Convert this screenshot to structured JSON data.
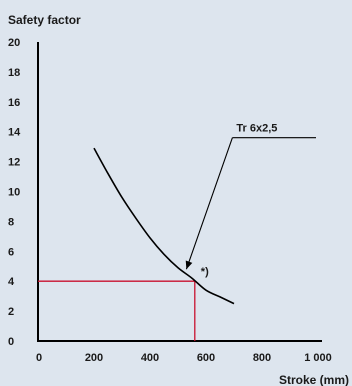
{
  "chart_data": {
    "type": "line",
    "ylabel": "Safety factor",
    "xlabel": "Stroke (mm)",
    "xlim": [
      0,
      1000
    ],
    "ylim": [
      0,
      20
    ],
    "x_ticks": [
      {
        "value": 0,
        "label": "0"
      },
      {
        "value": 200,
        "label": "200"
      },
      {
        "value": 400,
        "label": "400"
      },
      {
        "value": 600,
        "label": "600"
      },
      {
        "value": 800,
        "label": "800"
      },
      {
        "value": 1000,
        "label": "1 000"
      }
    ],
    "y_ticks": [
      {
        "value": 0,
        "label": "0"
      },
      {
        "value": 2,
        "label": "2"
      },
      {
        "value": 4,
        "label": "4"
      },
      {
        "value": 6,
        "label": "6"
      },
      {
        "value": 8,
        "label": "8"
      },
      {
        "value": 10,
        "label": "10"
      },
      {
        "value": 12,
        "label": "12"
      },
      {
        "value": 14,
        "label": "14"
      },
      {
        "value": 16,
        "label": "16"
      },
      {
        "value": 18,
        "label": "18"
      },
      {
        "value": 20,
        "label": "20"
      }
    ],
    "grid": false,
    "series": [
      {
        "name": "Tr 6x2,5",
        "color": "#000000",
        "x": [
          200,
          250,
          300,
          350,
          400,
          450,
          500,
          550,
          600,
          650,
          700
        ],
        "y": [
          12.9,
          11.2,
          9.6,
          8.2,
          6.9,
          5.8,
          4.9,
          4.2,
          3.4,
          2.95,
          2.5
        ]
      }
    ],
    "annotations": [
      {
        "text": "*)",
        "x": 560,
        "y": 4.0
      },
      {
        "text": "Tr 6x2,5",
        "label_x": 780,
        "label_y": 13.6,
        "points_to": [
          530,
          4.8
        ]
      }
    ],
    "reference_lines": {
      "color": "#c8102e",
      "x": 560,
      "y": 4
    },
    "colors": {
      "background": "#dde5ee",
      "axis": "#000000",
      "curve": "#000000",
      "reference": "#c8102e",
      "text": "#1a1a1a"
    }
  }
}
